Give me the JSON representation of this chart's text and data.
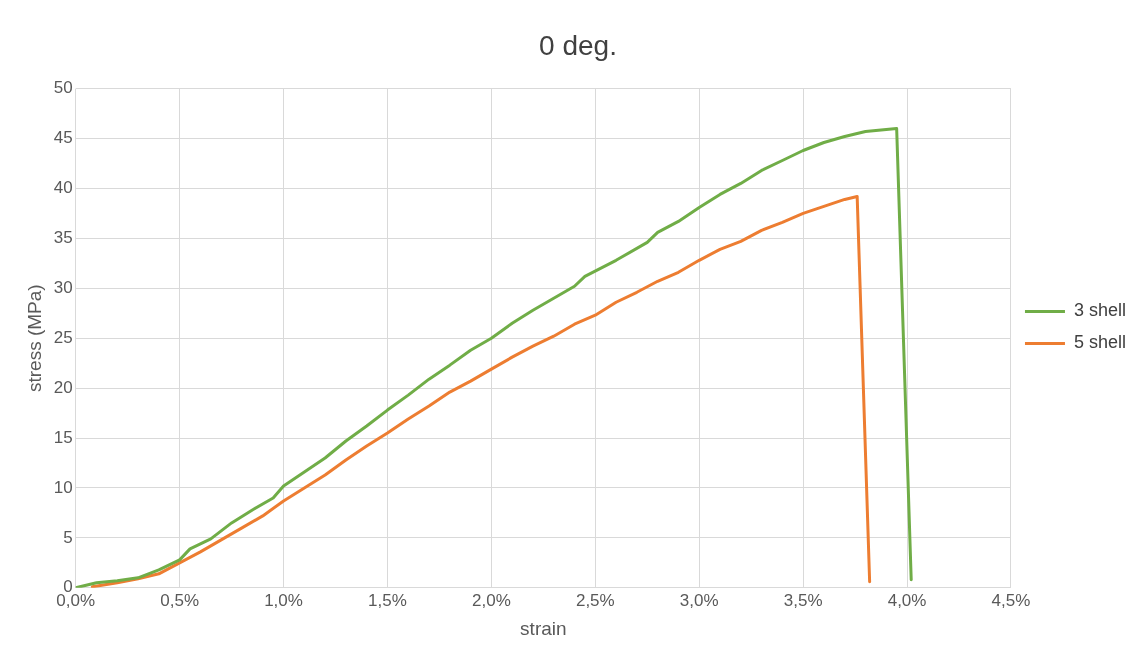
{
  "chart_data": {
    "type": "line",
    "title": "0 deg.",
    "xlabel": "strain",
    "ylabel": "stress (MPa)",
    "xlim": [
      0,
      4.5
    ],
    "xticks": [
      {
        "value": 0,
        "label": "0,0%"
      },
      {
        "value": 0.5,
        "label": "0,5%"
      },
      {
        "value": 1,
        "label": "1,0%"
      },
      {
        "value": 1.5,
        "label": "1,5%"
      },
      {
        "value": 2,
        "label": "2,0%"
      },
      {
        "value": 2.5,
        "label": "2,5%"
      },
      {
        "value": 3,
        "label": "3,0%"
      },
      {
        "value": 3.5,
        "label": "3,5%"
      },
      {
        "value": 4,
        "label": "4,0%"
      },
      {
        "value": 4.5,
        "label": "4,5%"
      }
    ],
    "ylim": [
      0,
      50
    ],
    "yticks": [
      0,
      5,
      10,
      15,
      20,
      25,
      30,
      35,
      40,
      45,
      50
    ],
    "grid": true,
    "legend": "right",
    "marker": "none",
    "line_style": "solid",
    "series": [
      {
        "name": "3 shell",
        "color": "#70ad47",
        "x": [
          0,
          0.1,
          0.2,
          0.3,
          0.4,
          0.5,
          0.55,
          0.65,
          0.75,
          0.85,
          0.95,
          1.0,
          1.1,
          1.2,
          1.3,
          1.4,
          1.5,
          1.6,
          1.7,
          1.8,
          1.9,
          2.0,
          2.1,
          2.2,
          2.3,
          2.4,
          2.45,
          2.6,
          2.75,
          2.8,
          2.9,
          3.0,
          3.1,
          3.2,
          3.3,
          3.4,
          3.5,
          3.6,
          3.7,
          3.8,
          3.95,
          4.02
        ],
        "values": [
          0,
          0.5,
          0.7,
          1.0,
          1.8,
          2.8,
          3.9,
          4.9,
          6.5,
          7.8,
          9.0,
          10.2,
          11.6,
          13.0,
          14.7,
          16.2,
          17.8,
          19.3,
          20.9,
          22.3,
          23.8,
          25.0,
          26.5,
          27.8,
          29.0,
          30.2,
          31.2,
          32.8,
          34.6,
          35.6,
          36.7,
          38.1,
          39.4,
          40.5,
          41.8,
          42.8,
          43.8,
          44.6,
          45.2,
          45.7,
          46.0,
          0.8
        ]
      },
      {
        "name": "5 shell",
        "color": "#ed7d31",
        "x": [
          0.08,
          0.2,
          0.3,
          0.4,
          0.5,
          0.6,
          0.7,
          0.8,
          0.9,
          1.0,
          1.1,
          1.2,
          1.3,
          1.4,
          1.5,
          1.6,
          1.7,
          1.8,
          1.9,
          2.0,
          2.1,
          2.2,
          2.3,
          2.4,
          2.5,
          2.6,
          2.7,
          2.8,
          2.9,
          3.0,
          3.1,
          3.2,
          3.3,
          3.4,
          3.5,
          3.6,
          3.7,
          3.76,
          3.82
        ],
        "values": [
          0.1,
          0.5,
          0.9,
          1.4,
          2.5,
          3.6,
          4.8,
          6.0,
          7.2,
          8.7,
          10.0,
          11.3,
          12.8,
          14.2,
          15.5,
          16.9,
          18.2,
          19.6,
          20.7,
          21.9,
          23.1,
          24.2,
          25.2,
          26.4,
          27.3,
          28.6,
          29.6,
          30.7,
          31.6,
          32.8,
          33.9,
          34.7,
          35.8,
          36.6,
          37.5,
          38.2,
          38.9,
          39.2,
          0.6
        ]
      }
    ]
  }
}
